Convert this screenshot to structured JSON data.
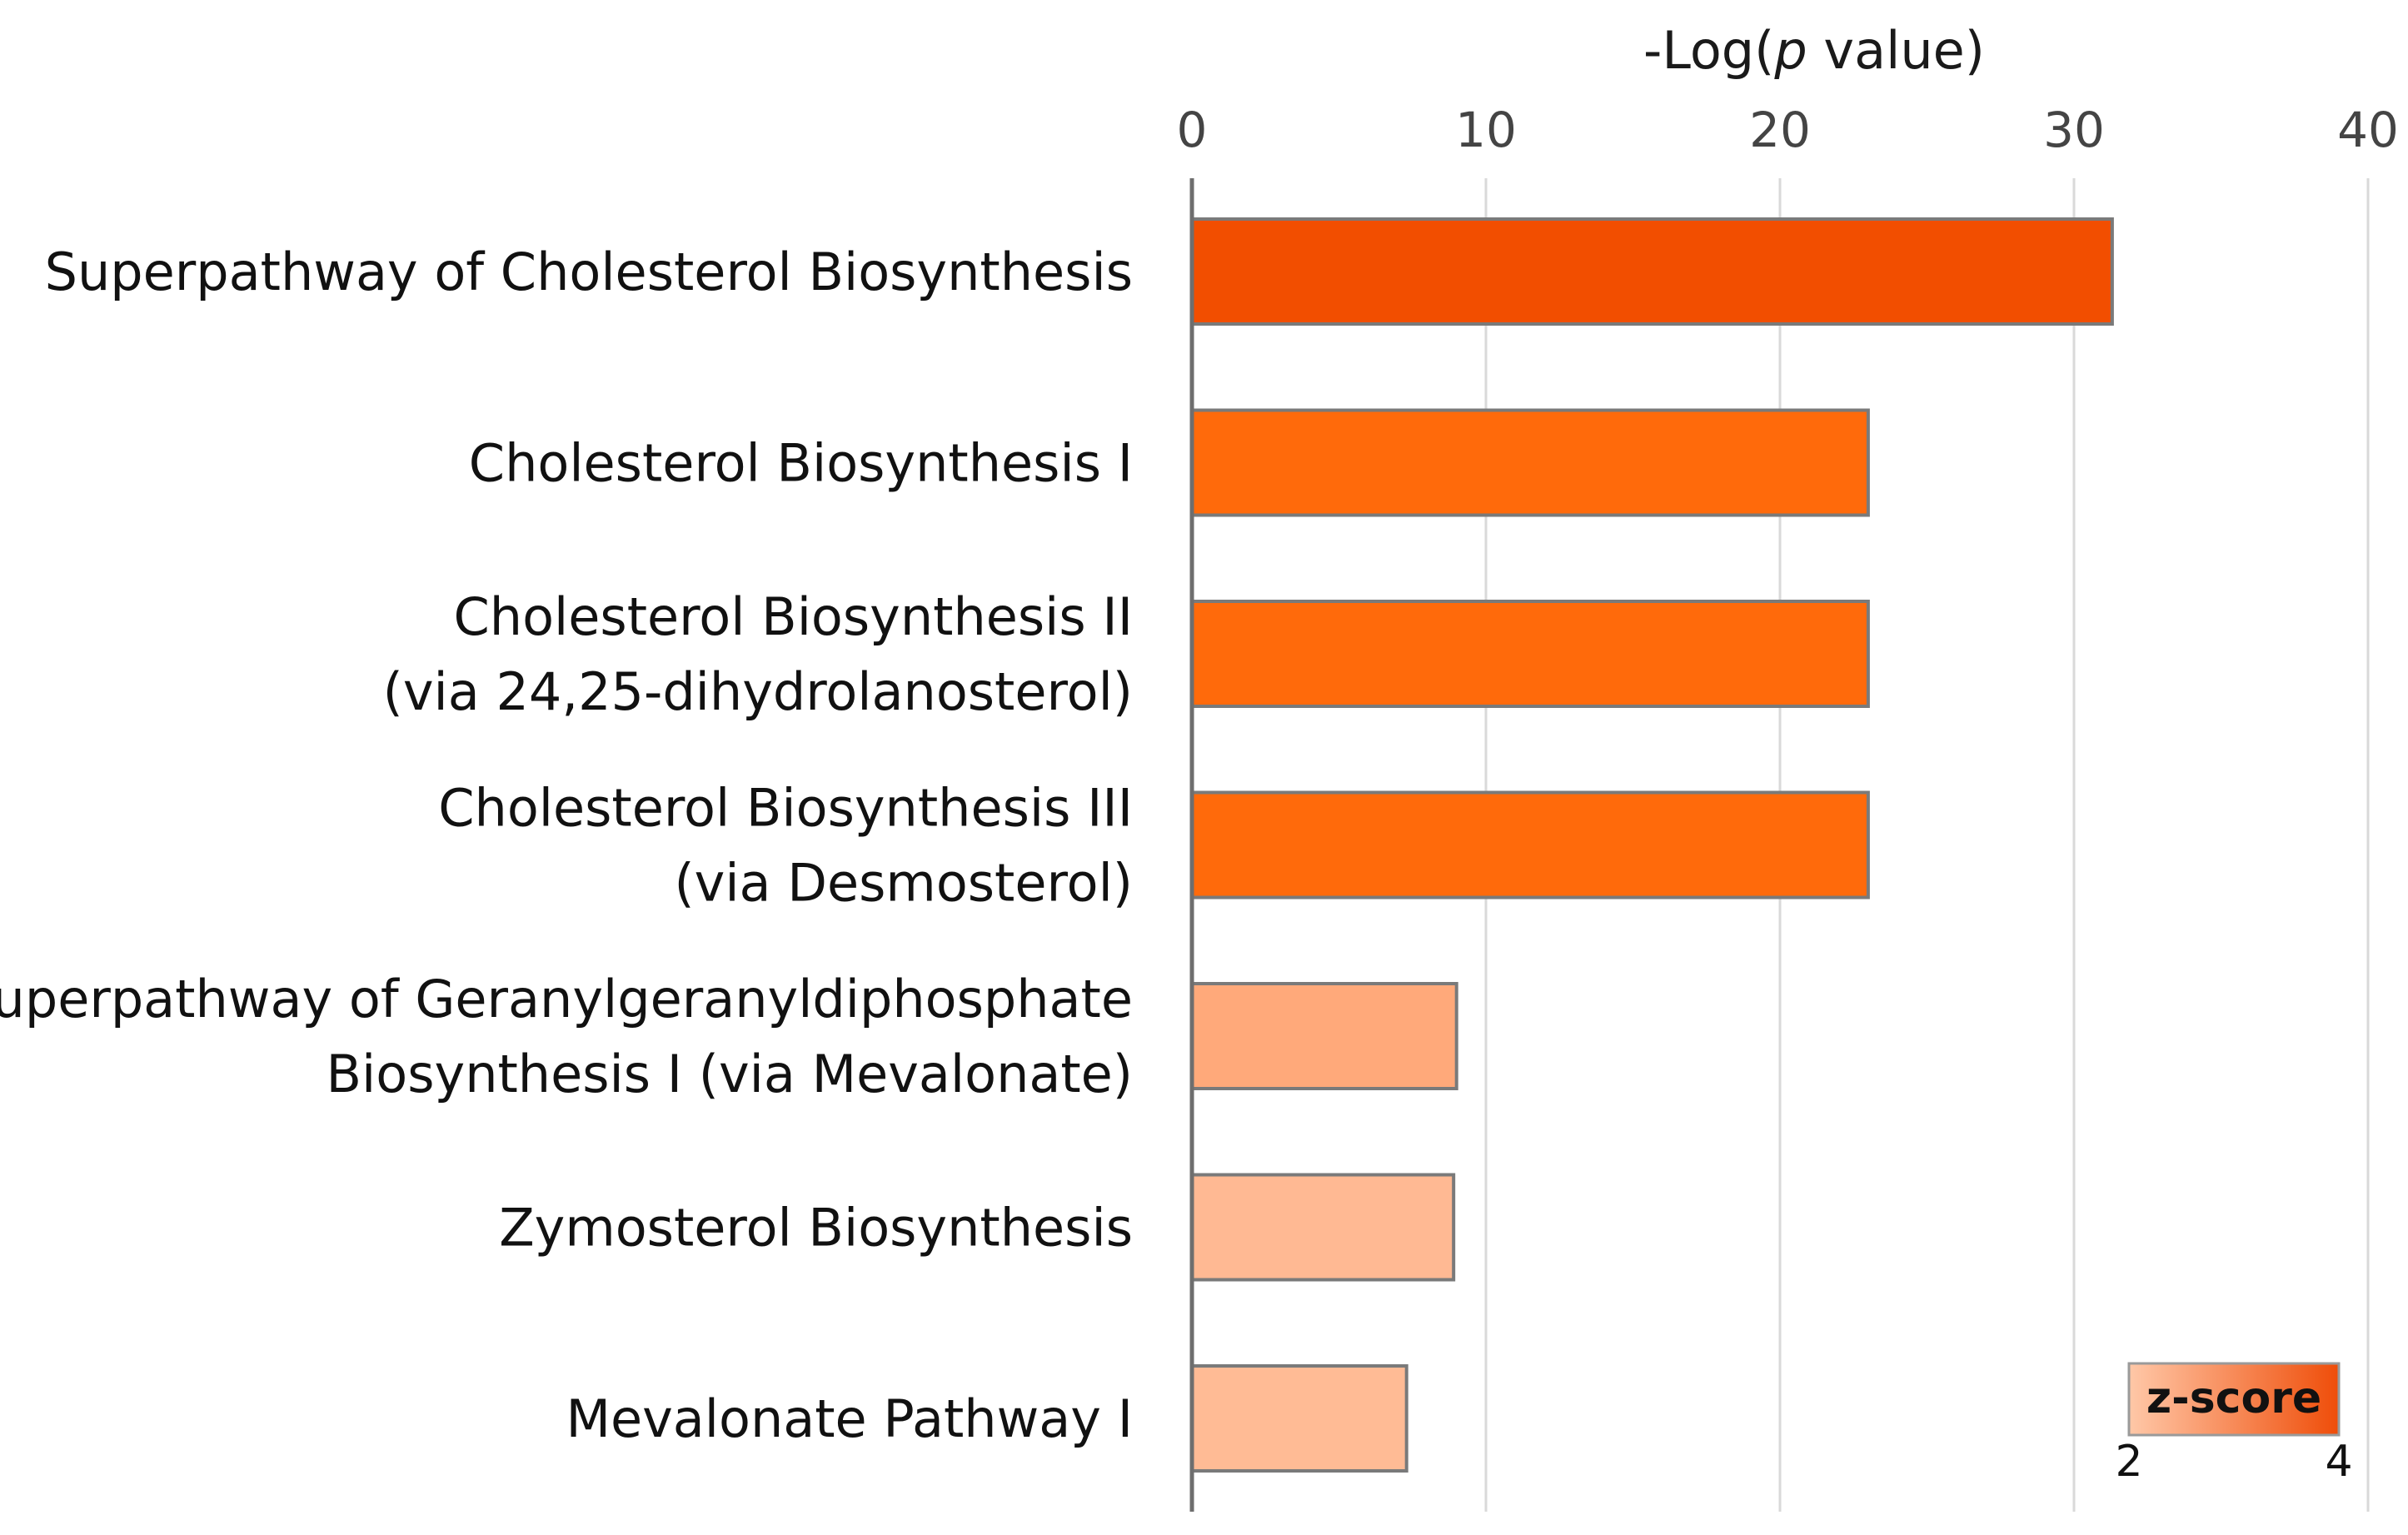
{
  "chart_data": {
    "type": "bar",
    "orientation": "horizontal",
    "xlabel": "-Log(p value)",
    "xlabel_prefix": "-Log(",
    "xlabel_italic": "p",
    "xlabel_suffix": " value)",
    "xlim": [
      0,
      40
    ],
    "xticks": [
      0,
      10,
      20,
      30,
      40
    ],
    "grid": true,
    "categories": [
      [
        "Superpathway of Cholesterol Biosynthesis"
      ],
      [
        "Cholesterol Biosynthesis I"
      ],
      [
        "Cholesterol Biosynthesis II",
        "(via 24,25-dihydrolanosterol)"
      ],
      [
        "Cholesterol Biosynthesis III",
        "(via Desmosterol)"
      ],
      [
        "Superpathway of Geranylgeranyldiphosphate",
        "Biosynthesis I (via Mevalonate)"
      ],
      [
        "Zymosterol Biosynthesis"
      ],
      [
        "Mevalonate Pathway I"
      ]
    ],
    "values": [
      31.3,
      23.0,
      23.0,
      23.0,
      9.0,
      8.9,
      7.3
    ],
    "bar_colors": [
      "#f24e00",
      "#ff6a0b",
      "#ff6a0b",
      "#ff6a0b",
      "#ffa97a",
      "#ffb993",
      "#ffbb95"
    ],
    "legend": {
      "title": "z-score",
      "min_label": "2",
      "max_label": "4",
      "position": "bottom-right",
      "color_low": "#ffc8a8",
      "color_high": "#ef4d09"
    }
  }
}
